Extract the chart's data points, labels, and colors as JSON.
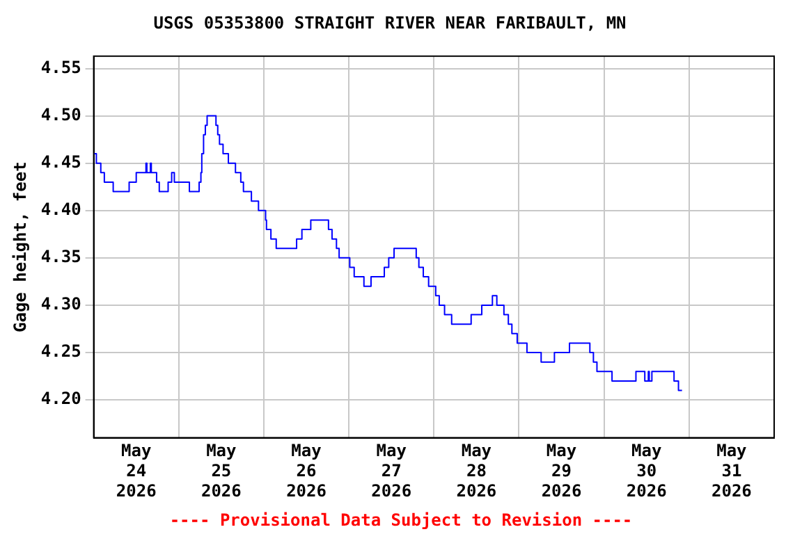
{
  "chart_data": {
    "type": "step",
    "title": "USGS 05353800 STRAIGHT RIVER NEAR FARIBAULT, MN",
    "ylabel": "Gage height, feet",
    "annotations": [
      "---- Provisional Data Subject to Revision ----"
    ],
    "grid": true,
    "legend": false,
    "marker": "none",
    "line_style": "solid",
    "xlim": [
      "2026-05-24T00:00",
      "2026-06-01T00:00"
    ],
    "xticks": [
      {
        "value": "2026-05-24T12:00",
        "label": "May\n24\n2026"
      },
      {
        "value": "2026-05-25T00:00",
        "label": null
      },
      {
        "value": "2026-05-25T12:00",
        "label": "May\n25\n2026"
      },
      {
        "value": "2026-05-26T00:00",
        "label": null
      },
      {
        "value": "2026-05-26T12:00",
        "label": "May\n26\n2026"
      },
      {
        "value": "2026-05-27T00:00",
        "label": null
      },
      {
        "value": "2026-05-27T12:00",
        "label": "May\n27\n2026"
      },
      {
        "value": "2026-05-28T00:00",
        "label": null
      },
      {
        "value": "2026-05-28T12:00",
        "label": "May\n28\n2026"
      },
      {
        "value": "2026-05-29T00:00",
        "label": null
      },
      {
        "value": "2026-05-29T12:00",
        "label": "May\n29\n2026"
      },
      {
        "value": "2026-05-30T00:00",
        "label": null
      },
      {
        "value": "2026-05-30T12:00",
        "label": "May\n30\n2026"
      },
      {
        "value": "2026-05-31T00:00",
        "label": null
      },
      {
        "value": "2026-05-31T12:00",
        "label": "May\n31\n2026"
      }
    ],
    "ylim": [
      4.16,
      4.563
    ],
    "yticks": [
      {
        "value": 4.2,
        "label": "4.20"
      },
      {
        "value": 4.25,
        "label": "4.25"
      },
      {
        "value": 4.3,
        "label": "4.30"
      },
      {
        "value": 4.35,
        "label": "4.35"
      },
      {
        "value": 4.4,
        "label": "4.40"
      },
      {
        "value": 4.45,
        "label": "4.45"
      },
      {
        "value": 4.5,
        "label": "4.50"
      },
      {
        "value": 4.55,
        "label": "4.55"
      }
    ],
    "series": [
      {
        "color": "#0000ff",
        "x": [
          "2026-05-24T00:00",
          "2026-05-24T00:45",
          "2026-05-24T02:00",
          "2026-05-24T03:00",
          "2026-05-24T05:30",
          "2026-05-24T10:00",
          "2026-05-24T12:00",
          "2026-05-24T14:45",
          "2026-05-24T15:00",
          "2026-05-24T16:00",
          "2026-05-24T16:15",
          "2026-05-24T17:45",
          "2026-05-24T18:30",
          "2026-05-24T21:00",
          "2026-05-24T22:00",
          "2026-05-24T22:45",
          "2026-05-25T03:00",
          "2026-05-25T05:45",
          "2026-05-25T06:15",
          "2026-05-25T06:30",
          "2026-05-25T07:00",
          "2026-05-25T07:30",
          "2026-05-25T08:00",
          "2026-05-25T10:30",
          "2026-05-25T11:00",
          "2026-05-25T11:30",
          "2026-05-25T12:30",
          "2026-05-25T14:00",
          "2026-05-25T16:00",
          "2026-05-25T17:30",
          "2026-05-25T18:15",
          "2026-05-25T20:30",
          "2026-05-25T22:30",
          "2026-05-26T00:30",
          "2026-05-26T00:45",
          "2026-05-26T02:00",
          "2026-05-26T03:30",
          "2026-05-26T09:15",
          "2026-05-26T10:45",
          "2026-05-26T13:15",
          "2026-05-26T18:15",
          "2026-05-26T19:15",
          "2026-05-26T20:30",
          "2026-05-26T21:15",
          "2026-05-27T00:15",
          "2026-05-27T01:30",
          "2026-05-27T04:15",
          "2026-05-27T06:15",
          "2026-05-27T10:00",
          "2026-05-27T11:15",
          "2026-05-27T12:45",
          "2026-05-27T19:00",
          "2026-05-27T19:45",
          "2026-05-27T21:00",
          "2026-05-27T22:30",
          "2026-05-28T00:30",
          "2026-05-28T01:30",
          "2026-05-28T03:00",
          "2026-05-28T05:00",
          "2026-05-28T10:30",
          "2026-05-28T13:30",
          "2026-05-28T16:30",
          "2026-05-28T17:45",
          "2026-05-28T19:45",
          "2026-05-28T21:00",
          "2026-05-28T22:00",
          "2026-05-28T23:30",
          "2026-05-29T02:15",
          "2026-05-29T06:15",
          "2026-05-29T10:00",
          "2026-05-29T14:15",
          "2026-05-29T20:00",
          "2026-05-29T21:00",
          "2026-05-29T22:00",
          "2026-05-30T02:15",
          "2026-05-30T09:00",
          "2026-05-30T11:30",
          "2026-05-30T12:30",
          "2026-05-30T12:45",
          "2026-05-30T13:30",
          "2026-05-30T19:45",
          "2026-05-30T21:00",
          "2026-05-30T22:00"
        ],
        "values": [
          4.46,
          4.45,
          4.44,
          4.43,
          4.42,
          4.43,
          4.44,
          4.45,
          4.44,
          4.45,
          4.44,
          4.43,
          4.42,
          4.43,
          4.44,
          4.43,
          4.42,
          4.43,
          4.44,
          4.46,
          4.48,
          4.49,
          4.5,
          4.49,
          4.48,
          4.47,
          4.46,
          4.45,
          4.44,
          4.43,
          4.42,
          4.41,
          4.4,
          4.39,
          4.38,
          4.37,
          4.36,
          4.37,
          4.38,
          4.39,
          4.38,
          4.37,
          4.36,
          4.35,
          4.34,
          4.33,
          4.32,
          4.33,
          4.34,
          4.35,
          4.36,
          4.35,
          4.34,
          4.33,
          4.32,
          4.31,
          4.3,
          4.29,
          4.28,
          4.29,
          4.3,
          4.31,
          4.3,
          4.29,
          4.28,
          4.27,
          4.26,
          4.25,
          4.24,
          4.25,
          4.26,
          4.25,
          4.24,
          4.23,
          4.22,
          4.23,
          4.22,
          4.23,
          4.22,
          4.23,
          4.22,
          4.21,
          4.21
        ]
      }
    ]
  }
}
